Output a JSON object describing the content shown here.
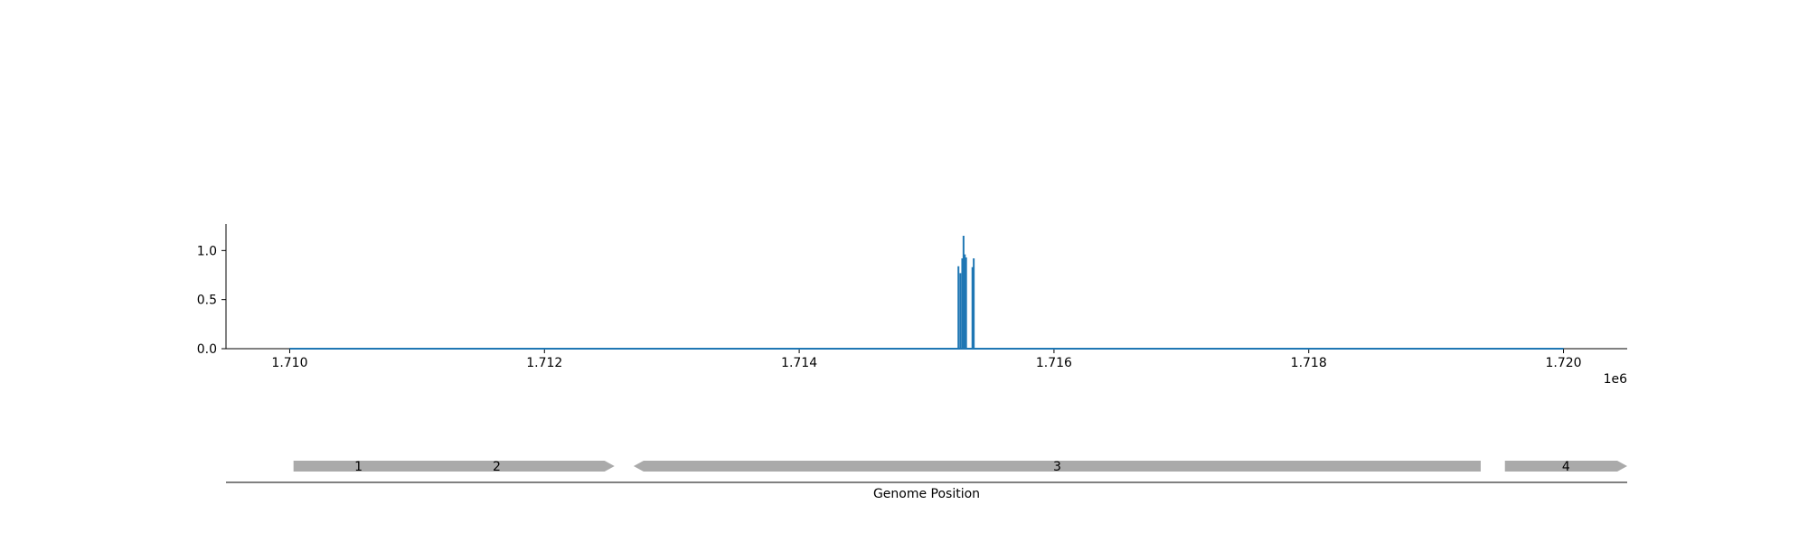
{
  "chart_data": [
    {
      "type": "line",
      "title": "",
      "xlabel": "",
      "ylabel": "",
      "x_offset_label": "1e6",
      "xlim": [
        1709500,
        1720500
      ],
      "ylim": [
        0,
        1.27
      ],
      "x_ticks": [
        1710000,
        1712000,
        1714000,
        1716000,
        1718000,
        1720000
      ],
      "x_tick_labels": [
        "1.710",
        "1.712",
        "1.714",
        "1.716",
        "1.718",
        "1.720"
      ],
      "y_ticks": [
        0,
        0.5,
        1.0
      ],
      "y_tick_labels": [
        "0.0",
        "0.5",
        "1.0"
      ],
      "grid": false,
      "color": "#1f77b4",
      "baseline": {
        "x_start": 1710000,
        "x_end": 1720000,
        "y": 0
      },
      "spikes": [
        {
          "x": 1715250,
          "y": 0.84
        },
        {
          "x": 1715265,
          "y": 0.77
        },
        {
          "x": 1715280,
          "y": 0.92
        },
        {
          "x": 1715290,
          "y": 1.15
        },
        {
          "x": 1715300,
          "y": 0.96
        },
        {
          "x": 1715310,
          "y": 0.93
        },
        {
          "x": 1715360,
          "y": 0.83
        },
        {
          "x": 1715370,
          "y": 0.92
        }
      ]
    },
    {
      "type": "gene_track",
      "xlabel": "Genome Position",
      "xlim": [
        1709500,
        1720500
      ],
      "color": "#aaaaaa",
      "genes": [
        {
          "label": "1",
          "start": 1710030,
          "end": 1711050,
          "strand": "+"
        },
        {
          "label": "2",
          "start": 1710700,
          "end": 1712550,
          "strand": "+"
        },
        {
          "label": "3",
          "start": 1712700,
          "end": 1719350,
          "strand": "-"
        },
        {
          "label": "4",
          "start": 1719540,
          "end": 1720500,
          "strand": "+"
        }
      ]
    }
  ]
}
